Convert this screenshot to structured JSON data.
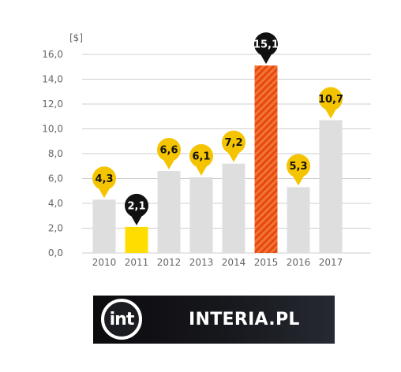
{
  "chart_data": {
    "type": "bar",
    "ylabel": "[$]",
    "ylim": [
      0,
      16
    ],
    "yticks": [
      "0,0",
      "2,0",
      "4,0",
      "6,0",
      "8,0",
      "10,0",
      "12,0",
      "14,0",
      "16,0"
    ],
    "grid": true,
    "categories": [
      "2010",
      "2011",
      "2012",
      "2013",
      "2014",
      "2015",
      "2016",
      "2017"
    ],
    "values": [
      4.3,
      2.1,
      6.6,
      6.1,
      7.2,
      15.1,
      5.3,
      10.7
    ],
    "value_labels": [
      "4,3",
      "2,1",
      "6,6",
      "6,1",
      "7,2",
      "15,1",
      "5,3",
      "10,7"
    ],
    "highlight": {
      "min": {
        "category": "2011",
        "bar_color": "#ffdd00",
        "marker_color": "#111111"
      },
      "max": {
        "category": "2015",
        "bar_color": "#e8451a",
        "marker_color": "#111111"
      }
    },
    "colors": {
      "bar": "#dddedd",
      "marker": "#f5c400",
      "grid": "#cfcfcf"
    }
  },
  "branding": {
    "logo_mark": "int",
    "logo_text": "INTERIA.PL"
  }
}
